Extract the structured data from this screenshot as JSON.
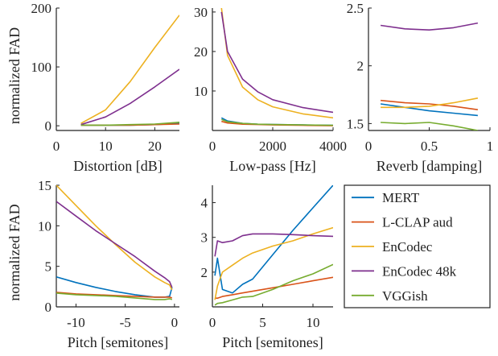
{
  "colors": {
    "MERT": "#0072bd",
    "L-CLAP aud": "#d95319",
    "EnCodec": "#edb120",
    "EnCodec 48k": "#7e2f8e",
    "VGGish": "#77ac30"
  },
  "legend": {
    "placement": "bottom-right",
    "entries": [
      "MERT",
      "L-CLAP aud",
      "EnCodec",
      "EnCodec 48k",
      "VGGish"
    ]
  },
  "chart_data": [
    {
      "type": "line",
      "ylabel": "normalized FAD",
      "xlabel": "Distortion [dB]",
      "xlim": [
        0,
        25
      ],
      "ylim": [
        -8,
        200
      ],
      "xticks": [
        0,
        10,
        20
      ],
      "yticks": [
        0,
        100,
        200
      ],
      "series": [
        {
          "name": "MERT",
          "x": [
            5,
            10,
            15,
            20,
            25
          ],
          "y": [
            1,
            1,
            1,
            2,
            4
          ]
        },
        {
          "name": "L-CLAP aud",
          "x": [
            5,
            10,
            15,
            20,
            25
          ],
          "y": [
            1,
            1,
            1,
            2,
            3
          ]
        },
        {
          "name": "EnCodec",
          "x": [
            5,
            10,
            15,
            20,
            25
          ],
          "y": [
            4,
            27,
            75,
            133,
            188
          ]
        },
        {
          "name": "EnCodec 48k",
          "x": [
            5,
            10,
            15,
            20,
            25
          ],
          "y": [
            2,
            15,
            38,
            66,
            96
          ]
        },
        {
          "name": "VGGish",
          "x": [
            5,
            10,
            15,
            20,
            25
          ],
          "y": [
            1,
            1,
            2,
            3,
            6
          ]
        }
      ]
    },
    {
      "type": "line",
      "ylabel": "",
      "xlabel": "Low-pass [Hz]",
      "xlim": [
        0,
        4000
      ],
      "ylim": [
        0,
        31
      ],
      "xticks": [
        0,
        2000,
        4000
      ],
      "yticks": [
        10,
        20,
        30
      ],
      "series": [
        {
          "name": "MERT",
          "x": [
            300,
            500,
            1000,
            1500,
            2000,
            3000,
            4000
          ],
          "y": [
            3.2,
            2.4,
            1.8,
            1.6,
            1.5,
            1.4,
            1.3
          ]
        },
        {
          "name": "L-CLAP aud",
          "x": [
            300,
            500,
            1000,
            1500,
            2000,
            3000,
            4000
          ],
          "y": [
            2.3,
            1.9,
            1.6,
            1.5,
            1.4,
            1.3,
            1.2
          ]
        },
        {
          "name": "EnCodec",
          "x": [
            300,
            500,
            1000,
            1500,
            2000,
            3000,
            4000
          ],
          "y": [
            31,
            19,
            11,
            7.8,
            6,
            4.2,
            3.2
          ]
        },
        {
          "name": "EnCodec 48k",
          "x": [
            300,
            500,
            1000,
            1500,
            2000,
            3000,
            4000
          ],
          "y": [
            30,
            20,
            13,
            9.8,
            7.8,
            5.8,
            4.6
          ]
        },
        {
          "name": "VGGish",
          "x": [
            300,
            500,
            1000,
            1500,
            2000,
            3000,
            4000
          ],
          "y": [
            2.8,
            2.2,
            1.8,
            1.6,
            1.5,
            1.4,
            1.3
          ]
        }
      ]
    },
    {
      "type": "line",
      "ylabel": "",
      "xlabel": "Reverb [damping]",
      "xlim": [
        0,
        1
      ],
      "ylim": [
        1.44,
        2.5
      ],
      "xticks": [
        0,
        0.5,
        1
      ],
      "yticks": [
        1.5,
        2,
        2.5
      ],
      "series": [
        {
          "name": "MERT",
          "x": [
            0.1,
            0.3,
            0.5,
            0.7,
            0.9
          ],
          "y": [
            1.67,
            1.64,
            1.61,
            1.59,
            1.57
          ]
        },
        {
          "name": "L-CLAP aud",
          "x": [
            0.1,
            0.3,
            0.5,
            0.7,
            0.9
          ],
          "y": [
            1.7,
            1.68,
            1.67,
            1.65,
            1.62
          ]
        },
        {
          "name": "EnCodec",
          "x": [
            0.1,
            0.3,
            0.5,
            0.7,
            0.9
          ],
          "y": [
            1.64,
            1.64,
            1.65,
            1.68,
            1.72
          ]
        },
        {
          "name": "EnCodec 48k",
          "x": [
            0.1,
            0.3,
            0.5,
            0.7,
            0.9
          ],
          "y": [
            2.35,
            2.32,
            2.31,
            2.33,
            2.37
          ]
        },
        {
          "name": "VGGish",
          "x": [
            0.1,
            0.3,
            0.5,
            0.7,
            0.9
          ],
          "y": [
            1.51,
            1.5,
            1.51,
            1.48,
            1.44
          ]
        }
      ]
    },
    {
      "type": "line",
      "ylabel": "normalized FAD",
      "xlabel": "Pitch [semitones]",
      "xlim": [
        -12,
        0.5
      ],
      "ylim": [
        0,
        15
      ],
      "xticks": [
        -10,
        -5,
        0
      ],
      "yticks": [
        0,
        5,
        10,
        15
      ],
      "series": [
        {
          "name": "MERT",
          "x": [
            -12,
            -10,
            -8,
            -6,
            -4,
            -2,
            -1,
            -0.5,
            -0.25
          ],
          "y": [
            3.7,
            3.0,
            2.4,
            1.9,
            1.5,
            1.2,
            1.2,
            1.3,
            2.4
          ]
        },
        {
          "name": "L-CLAP aud",
          "x": [
            -12,
            -10,
            -8,
            -6,
            -4,
            -2,
            -1,
            -0.5,
            -0.25
          ],
          "y": [
            1.8,
            1.6,
            1.5,
            1.4,
            1.3,
            1.2,
            1.2,
            1.2,
            1.1
          ]
        },
        {
          "name": "EnCodec",
          "x": [
            -12,
            -10,
            -8,
            -6,
            -4,
            -2,
            -1,
            -0.5,
            -0.25
          ],
          "y": [
            15,
            12.5,
            10,
            7.7,
            5.5,
            3.7,
            3.0,
            2.7,
            2.1
          ]
        },
        {
          "name": "EnCodec 48k",
          "x": [
            -12,
            -10,
            -8,
            -6,
            -4,
            -2,
            -1,
            -0.5,
            -0.25
          ],
          "y": [
            13,
            11.2,
            9.4,
            7.8,
            6.2,
            4.4,
            3.6,
            3.1,
            2.4
          ]
        },
        {
          "name": "VGGish",
          "x": [
            -12,
            -10,
            -8,
            -6,
            -4,
            -2,
            -1,
            -0.5,
            -0.25
          ],
          "y": [
            1.7,
            1.5,
            1.4,
            1.3,
            1.1,
            0.9,
            0.9,
            1.0,
            0.9
          ]
        }
      ]
    },
    {
      "type": "line",
      "ylabel": "",
      "xlabel": "Pitch [semitones]",
      "xlim": [
        0,
        12
      ],
      "ylim": [
        1,
        4.5
      ],
      "xticks": [
        0,
        5,
        10
      ],
      "yticks": [
        2,
        3,
        4
      ],
      "series": [
        {
          "name": "MERT",
          "x": [
            0.25,
            0.5,
            1,
            2,
            3,
            4,
            6,
            8,
            10,
            12
          ],
          "y": [
            1.9,
            2.4,
            1.5,
            1.4,
            1.65,
            1.8,
            2.5,
            3.2,
            3.85,
            4.5
          ]
        },
        {
          "name": "L-CLAP aud",
          "x": [
            0.25,
            0.5,
            1,
            2,
            3,
            4,
            6,
            8,
            10,
            12
          ],
          "y": [
            1.25,
            1.25,
            1.3,
            1.35,
            1.4,
            1.45,
            1.55,
            1.65,
            1.75,
            1.85
          ]
        },
        {
          "name": "EnCodec",
          "x": [
            0.25,
            0.5,
            1,
            2,
            3,
            4,
            6,
            8,
            10,
            12
          ],
          "y": [
            1.2,
            1.6,
            2.0,
            2.2,
            2.4,
            2.55,
            2.75,
            2.9,
            3.1,
            3.28
          ]
        },
        {
          "name": "EnCodec 48k",
          "x": [
            0.25,
            0.5,
            1,
            2,
            3,
            4,
            6,
            8,
            10,
            12
          ],
          "y": [
            2.45,
            2.9,
            2.85,
            2.9,
            3.05,
            3.1,
            3.1,
            3.08,
            3.05,
            3.03
          ]
        },
        {
          "name": "VGGish",
          "x": [
            0.25,
            0.5,
            1,
            2,
            3,
            4,
            6,
            8,
            10,
            12
          ],
          "y": [
            1.05,
            1.1,
            1.12,
            1.2,
            1.28,
            1.3,
            1.5,
            1.75,
            1.95,
            2.22
          ]
        }
      ]
    }
  ]
}
